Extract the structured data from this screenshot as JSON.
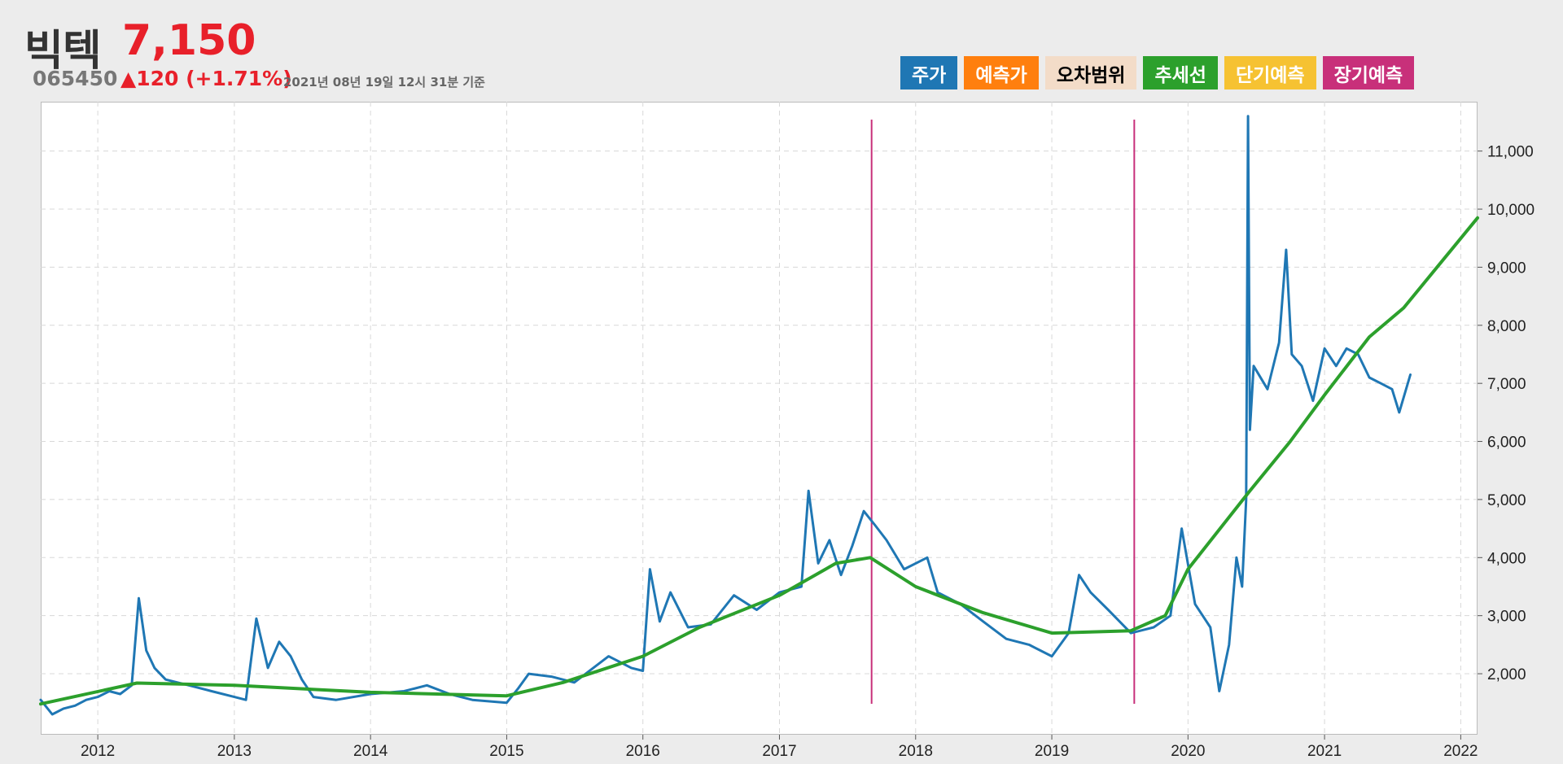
{
  "stock": {
    "name": "빅텍",
    "price": "7,150",
    "code": "065450",
    "change": "▲120 (+1.71%)",
    "timestamp": "2021년 08년 19일 12시 31분 기준"
  },
  "legend": [
    {
      "label": "주가",
      "color": "#1f77b4",
      "text_color": "#ffffff"
    },
    {
      "label": "예측가",
      "color": "#ff7f0e",
      "text_color": "#ffffff"
    },
    {
      "label": "오차범위",
      "color": "#f3dcc8",
      "text_color": "#000000"
    },
    {
      "label": "추세선",
      "color": "#2ca02c",
      "text_color": "#ffffff"
    },
    {
      "label": "단기예측",
      "color": "#f6c232",
      "text_color": "#ffffff"
    },
    {
      "label": "장기예측",
      "color": "#c8307a",
      "text_color": "#ffffff"
    }
  ],
  "chart_data": {
    "type": "line",
    "x_range": [
      "2011-08-01",
      "2022-02-15"
    ],
    "ylim": [
      950,
      11850
    ],
    "y_axis_position": "right",
    "grid": true,
    "x_ticks": [
      "2012",
      "2013",
      "2014",
      "2015",
      "2016",
      "2017",
      "2018",
      "2019",
      "2020",
      "2021",
      "2022"
    ],
    "y_ticks": [
      2000,
      3000,
      4000,
      5000,
      6000,
      7000,
      8000,
      9000,
      10000,
      11000
    ],
    "series": [
      {
        "name": "주가",
        "color": "#1f77b4",
        "points": [
          [
            "2011-08-01",
            1550
          ],
          [
            "2011-09-01",
            1300
          ],
          [
            "2011-10-01",
            1400
          ],
          [
            "2011-11-01",
            1450
          ],
          [
            "2011-12-01",
            1550
          ],
          [
            "2012-01-01",
            1600
          ],
          [
            "2012-02-01",
            1700
          ],
          [
            "2012-03-01",
            1650
          ],
          [
            "2012-04-01",
            1800
          ],
          [
            "2012-04-20",
            3300
          ],
          [
            "2012-05-10",
            2400
          ],
          [
            "2012-06-01",
            2100
          ],
          [
            "2012-07-01",
            1900
          ],
          [
            "2012-09-01",
            1800
          ],
          [
            "2012-11-01",
            1700
          ],
          [
            "2013-01-01",
            1600
          ],
          [
            "2013-02-01",
            1550
          ],
          [
            "2013-03-01",
            2950
          ],
          [
            "2013-04-01",
            2100
          ],
          [
            "2013-05-01",
            2550
          ],
          [
            "2013-06-01",
            2300
          ],
          [
            "2013-07-01",
            1900
          ],
          [
            "2013-08-01",
            1600
          ],
          [
            "2013-10-01",
            1550
          ],
          [
            "2014-01-01",
            1650
          ],
          [
            "2014-04-01",
            1700
          ],
          [
            "2014-06-01",
            1800
          ],
          [
            "2014-08-01",
            1650
          ],
          [
            "2014-10-01",
            1550
          ],
          [
            "2015-01-01",
            1500
          ],
          [
            "2015-02-01",
            1750
          ],
          [
            "2015-03-01",
            2000
          ],
          [
            "2015-05-01",
            1950
          ],
          [
            "2015-07-01",
            1850
          ],
          [
            "2015-10-01",
            2300
          ],
          [
            "2015-12-01",
            2100
          ],
          [
            "2016-01-01",
            2050
          ],
          [
            "2016-01-20",
            3800
          ],
          [
            "2016-02-15",
            2900
          ],
          [
            "2016-03-15",
            3400
          ],
          [
            "2016-05-01",
            2800
          ],
          [
            "2016-07-01",
            2850
          ],
          [
            "2016-09-01",
            3350
          ],
          [
            "2016-11-01",
            3100
          ],
          [
            "2017-01-01",
            3400
          ],
          [
            "2017-03-01",
            3500
          ],
          [
            "2017-03-20",
            5150
          ],
          [
            "2017-04-15",
            3900
          ],
          [
            "2017-05-15",
            4300
          ],
          [
            "2017-06-15",
            3700
          ],
          [
            "2017-07-15",
            4200
          ],
          [
            "2017-08-15",
            4800
          ],
          [
            "2017-09-15",
            4550
          ],
          [
            "2017-10-15",
            4300
          ],
          [
            "2017-12-01",
            3800
          ],
          [
            "2018-02-01",
            4000
          ],
          [
            "2018-03-01",
            3400
          ],
          [
            "2018-05-01",
            3200
          ],
          [
            "2018-07-01",
            2900
          ],
          [
            "2018-09-01",
            2600
          ],
          [
            "2018-11-01",
            2500
          ],
          [
            "2019-01-01",
            2300
          ],
          [
            "2019-02-15",
            2700
          ],
          [
            "2019-03-15",
            3700
          ],
          [
            "2019-04-15",
            3400
          ],
          [
            "2019-06-01",
            3100
          ],
          [
            "2019-08-01",
            2700
          ],
          [
            "2019-10-01",
            2800
          ],
          [
            "2019-11-15",
            3000
          ],
          [
            "2019-12-15",
            4500
          ],
          [
            "2020-01-20",
            3200
          ],
          [
            "2020-03-01",
            2800
          ],
          [
            "2020-03-25",
            1700
          ],
          [
            "2020-04-20",
            2500
          ],
          [
            "2020-05-10",
            4000
          ],
          [
            "2020-05-25",
            3500
          ],
          [
            "2020-06-05",
            5000
          ],
          [
            "2020-06-10",
            11600
          ],
          [
            "2020-06-15",
            6200
          ],
          [
            "2020-06-25",
            7300
          ],
          [
            "2020-08-01",
            6900
          ],
          [
            "2020-09-01",
            7700
          ],
          [
            "2020-09-20",
            9300
          ],
          [
            "2020-10-05",
            7500
          ],
          [
            "2020-11-01",
            7300
          ],
          [
            "2020-12-01",
            6700
          ],
          [
            "2021-01-01",
            7600
          ],
          [
            "2021-02-01",
            7300
          ],
          [
            "2021-03-01",
            7600
          ],
          [
            "2021-04-01",
            7500
          ],
          [
            "2021-05-01",
            7100
          ],
          [
            "2021-06-01",
            7000
          ],
          [
            "2021-07-01",
            6900
          ],
          [
            "2021-07-20",
            6500
          ],
          [
            "2021-08-19",
            7150
          ]
        ]
      },
      {
        "name": "추세선",
        "color": "#2ca02c",
        "points": [
          [
            "2011-08-01",
            1480
          ],
          [
            "2012-04-15",
            1840
          ],
          [
            "2013-01-01",
            1800
          ],
          [
            "2014-01-01",
            1680
          ],
          [
            "2015-01-01",
            1620
          ],
          [
            "2015-06-01",
            1850
          ],
          [
            "2016-01-01",
            2300
          ],
          [
            "2016-06-01",
            2800
          ],
          [
            "2017-01-01",
            3350
          ],
          [
            "2017-06-01",
            3900
          ],
          [
            "2017-09-01",
            4000
          ],
          [
            "2018-01-01",
            3500
          ],
          [
            "2018-07-01",
            3050
          ],
          [
            "2019-01-01",
            2700
          ],
          [
            "2019-08-01",
            2740
          ],
          [
            "2019-11-01",
            3000
          ],
          [
            "2020-01-01",
            3800
          ],
          [
            "2020-06-15",
            5150
          ],
          [
            "2020-10-01",
            6000
          ],
          [
            "2021-01-01",
            6800
          ],
          [
            "2021-05-01",
            7800
          ],
          [
            "2021-08-01",
            8300
          ],
          [
            "2022-02-15",
            9850
          ]
        ]
      }
    ],
    "vlines": [
      {
        "x": "2017-09-05",
        "color": "#c8307a"
      },
      {
        "x": "2019-08-10",
        "color": "#c8307a"
      }
    ]
  }
}
